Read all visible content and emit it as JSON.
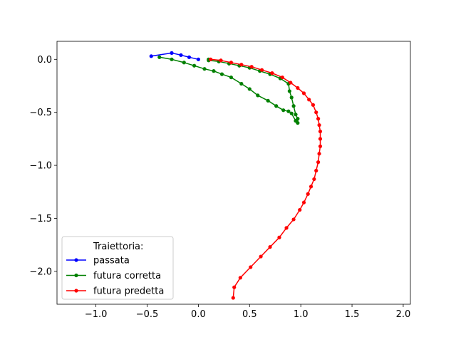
{
  "chart_data": {
    "type": "line",
    "title": "",
    "xlabel": "",
    "ylabel": "",
    "xlim": [
      -1.38,
      2.07
    ],
    "ylim": [
      -2.31,
      0.17
    ],
    "xticks": [
      -1.0,
      -0.5,
      0.0,
      0.5,
      1.0,
      1.5,
      2.0
    ],
    "xtick_labels": [
      "−1.0",
      "−0.5",
      "0.0",
      "0.5",
      "1.0",
      "1.5",
      "2.0"
    ],
    "yticks": [
      0.0,
      -0.5,
      -1.0,
      -1.5,
      -2.0
    ],
    "ytick_labels": [
      "0.0",
      "−0.5",
      "−1.0",
      "−1.5",
      "−2.0"
    ],
    "grid": false,
    "legend": {
      "title": "Traiettoria:",
      "placement": "lower-left"
    },
    "series": [
      {
        "name": "passata",
        "color": "#0000ff",
        "marker": "dot",
        "points": [
          [
            -0.46,
            0.03
          ],
          [
            -0.26,
            0.06
          ],
          [
            -0.17,
            0.04
          ],
          [
            -0.09,
            0.02
          ],
          [
            0.0,
            0.0
          ]
        ]
      },
      {
        "name": "futura corretta",
        "color": "#008000",
        "marker": "dot",
        "points": [
          [
            -0.38,
            0.02
          ],
          [
            -0.26,
            0.0
          ],
          [
            -0.14,
            -0.03
          ],
          [
            -0.04,
            -0.06
          ],
          [
            0.06,
            -0.09
          ],
          [
            0.15,
            -0.11
          ],
          [
            0.23,
            -0.14
          ],
          [
            0.32,
            -0.17
          ],
          [
            0.42,
            -0.23
          ],
          [
            0.5,
            -0.28
          ],
          [
            0.58,
            -0.34
          ],
          [
            0.68,
            -0.39
          ],
          [
            0.76,
            -0.44
          ],
          [
            0.83,
            -0.48
          ],
          [
            0.88,
            -0.49
          ],
          [
            0.91,
            -0.51
          ],
          [
            0.95,
            -0.58
          ],
          [
            0.97,
            -0.6
          ],
          [
            0.97,
            -0.56
          ],
          [
            0.95,
            -0.52
          ],
          [
            0.93,
            -0.44
          ],
          [
            0.91,
            -0.36
          ],
          [
            0.89,
            -0.3
          ],
          [
            0.88,
            -0.23
          ],
          [
            0.8,
            -0.18
          ],
          [
            0.7,
            -0.14
          ],
          [
            0.6,
            -0.11
          ],
          [
            0.5,
            -0.08
          ],
          [
            0.4,
            -0.06
          ],
          [
            0.3,
            -0.04
          ],
          [
            0.2,
            -0.02
          ],
          [
            0.1,
            -0.01
          ],
          [
            0.1,
            0.0
          ]
        ]
      },
      {
        "name": "futura predetta",
        "color": "#ff0000",
        "marker": "dot",
        "points": [
          [
            0.12,
            0.0
          ],
          [
            0.22,
            -0.01
          ],
          [
            0.32,
            -0.03
          ],
          [
            0.42,
            -0.05
          ],
          [
            0.52,
            -0.07
          ],
          [
            0.62,
            -0.1
          ],
          [
            0.72,
            -0.13
          ],
          [
            0.82,
            -0.17
          ],
          [
            0.9,
            -0.22
          ],
          [
            0.97,
            -0.27
          ],
          [
            1.03,
            -0.32
          ],
          [
            1.08,
            -0.38
          ],
          [
            1.12,
            -0.43
          ],
          [
            1.15,
            -0.5
          ],
          [
            1.17,
            -0.56
          ],
          [
            1.18,
            -0.62
          ],
          [
            1.19,
            -0.68
          ],
          [
            1.19,
            -0.75
          ],
          [
            1.19,
            -0.82
          ],
          [
            1.18,
            -0.89
          ],
          [
            1.17,
            -0.97
          ],
          [
            1.15,
            -1.05
          ],
          [
            1.13,
            -1.13
          ],
          [
            1.1,
            -1.2
          ],
          [
            1.07,
            -1.27
          ],
          [
            1.03,
            -1.35
          ],
          [
            0.99,
            -1.42
          ],
          [
            0.93,
            -1.51
          ],
          [
            0.86,
            -1.59
          ],
          [
            0.79,
            -1.68
          ],
          [
            0.7,
            -1.77
          ],
          [
            0.61,
            -1.86
          ],
          [
            0.51,
            -1.96
          ],
          [
            0.41,
            -2.06
          ],
          [
            0.35,
            -2.15
          ],
          [
            0.34,
            -2.25
          ]
        ]
      }
    ]
  }
}
